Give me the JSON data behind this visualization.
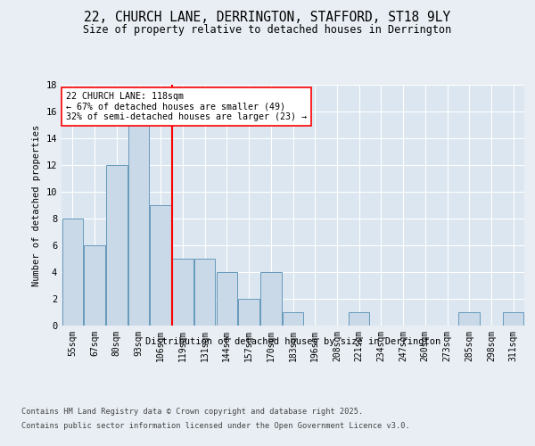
{
  "title": "22, CHURCH LANE, DERRINGTON, STAFFORD, ST18 9LY",
  "subtitle": "Size of property relative to detached houses in Derrington",
  "xlabel": "Distribution of detached houses by size in Derrington",
  "ylabel": "Number of detached properties",
  "categories": [
    "55sqm",
    "67sqm",
    "80sqm",
    "93sqm",
    "106sqm",
    "119sqm",
    "131sqm",
    "144sqm",
    "157sqm",
    "170sqm",
    "183sqm",
    "196sqm",
    "208sqm",
    "221sqm",
    "234sqm",
    "247sqm",
    "260sqm",
    "273sqm",
    "285sqm",
    "298sqm",
    "311sqm"
  ],
  "values": [
    8,
    6,
    12,
    15,
    9,
    5,
    5,
    4,
    2,
    4,
    1,
    0,
    0,
    1,
    0,
    0,
    0,
    0,
    1,
    0,
    1
  ],
  "bar_color": "#c9d9e8",
  "bar_edgecolor": "#6699bb",
  "redline_index": 5,
  "annotation_title": "22 CHURCH LANE: 118sqm",
  "annotation_line1": "← 67% of detached houses are smaller (49)",
  "annotation_line2": "32% of semi-detached houses are larger (23) →",
  "ylim": [
    0,
    18
  ],
  "yticks": [
    0,
    2,
    4,
    6,
    8,
    10,
    12,
    14,
    16,
    18
  ],
  "bg_color": "#e8eef4",
  "plot_bg_color": "#dce6f0",
  "grid_color": "#ffffff",
  "footer_line1": "Contains HM Land Registry data © Crown copyright and database right 2025.",
  "footer_line2": "Contains public sector information licensed under the Open Government Licence v3.0."
}
